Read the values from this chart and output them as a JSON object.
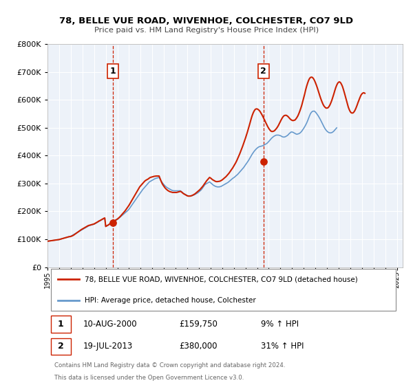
{
  "title": "78, BELLE VUE ROAD, WIVENHOE, COLCHESTER, CO7 9LD",
  "subtitle": "Price paid vs. HM Land Registry's House Price Index (HPI)",
  "legend_line1": "78, BELLE VUE ROAD, WIVENHOE, COLCHESTER, CO7 9LD (detached house)",
  "legend_line2": "HPI: Average price, detached house, Colchester",
  "annotation1_date": "10-AUG-2000",
  "annotation1_price": "£159,750",
  "annotation1_hpi": "9% ↑ HPI",
  "annotation2_date": "19-JUL-2013",
  "annotation2_price": "£380,000",
  "annotation2_hpi": "31% ↑ HPI",
  "footer1": "Contains HM Land Registry data © Crown copyright and database right 2024.",
  "footer2": "This data is licensed under the Open Government Licence v3.0.",
  "hpi_color": "#6699cc",
  "price_color": "#cc2200",
  "vline_color": "#cc2200",
  "plot_bg_color": "#edf2f9",
  "ylim": [
    0,
    800000
  ],
  "yticks": [
    0,
    100000,
    200000,
    300000,
    400000,
    500000,
    600000,
    700000,
    800000
  ],
  "xlim_start": 1995.0,
  "xlim_end": 2025.5,
  "xticks": [
    1995,
    1996,
    1997,
    1998,
    1999,
    2000,
    2001,
    2002,
    2003,
    2004,
    2005,
    2006,
    2007,
    2008,
    2009,
    2010,
    2011,
    2012,
    2013,
    2014,
    2015,
    2016,
    2017,
    2018,
    2019,
    2020,
    2021,
    2022,
    2023,
    2024,
    2025
  ],
  "sale1_x": 2000.61,
  "sale1_y": 159750,
  "sale2_x": 2013.54,
  "sale2_y": 380000,
  "vline1_x": 2000.61,
  "vline2_x": 2013.54,
  "hpi_y": [
    93000,
    93500,
    94000,
    94500,
    95000,
    95500,
    96000,
    96500,
    97000,
    97500,
    98000,
    98500,
    99000,
    100000,
    101000,
    102000,
    103000,
    104000,
    105000,
    106000,
    107000,
    108000,
    109000,
    110000,
    111000,
    113000,
    115000,
    117000,
    119000,
    121000,
    123000,
    125000,
    127000,
    129000,
    131000,
    133000,
    135000,
    137000,
    139000,
    141000,
    143000,
    145000,
    147000,
    149000,
    150000,
    151000,
    152000,
    153000,
    154000,
    156000,
    158000,
    160000,
    162000,
    164000,
    166000,
    168000,
    170000,
    172000,
    174000,
    176000,
    146000,
    148000,
    150000,
    152000,
    154000,
    157000,
    159000,
    161000,
    163000,
    165000,
    167000,
    169000,
    171000,
    174000,
    177000,
    180000,
    183000,
    186000,
    189000,
    192000,
    195000,
    198000,
    201000,
    204000,
    208000,
    213000,
    218000,
    223000,
    228000,
    233000,
    238000,
    243000,
    248000,
    253000,
    258000,
    263000,
    268000,
    273000,
    278000,
    282000,
    286000,
    290000,
    294000,
    298000,
    302000,
    306000,
    308000,
    310000,
    312000,
    314000,
    316000,
    318000,
    319000,
    320000,
    321000,
    322000,
    316000,
    310000,
    305000,
    300000,
    296000,
    292000,
    289000,
    286000,
    284000,
    282000,
    280000,
    278000,
    276000,
    275000,
    274000,
    274000,
    274000,
    274000,
    274000,
    274000,
    274000,
    274000,
    271000,
    268000,
    265000,
    263000,
    261000,
    259000,
    257000,
    256000,
    255000,
    255000,
    256000,
    257000,
    258000,
    259000,
    261000,
    263000,
    265000,
    267000,
    270000,
    273000,
    276000,
    280000,
    285000,
    290000,
    295000,
    298000,
    300000,
    302000,
    304000,
    306000,
    303000,
    300000,
    297000,
    294000,
    292000,
    290000,
    289000,
    288000,
    288000,
    288000,
    289000,
    290000,
    292000,
    294000,
    296000,
    298000,
    300000,
    302000,
    304000,
    307000,
    310000,
    313000,
    316000,
    319000,
    321000,
    324000,
    327000,
    330000,
    333000,
    337000,
    341000,
    345000,
    349000,
    353000,
    357000,
    362000,
    367000,
    372000,
    377000,
    382000,
    388000,
    394000,
    400000,
    406000,
    411000,
    416000,
    420000,
    424000,
    427000,
    430000,
    432000,
    433000,
    434000,
    435000,
    436000,
    438000,
    440000,
    442000,
    444000,
    447000,
    451000,
    455000,
    459000,
    463000,
    466000,
    469000,
    471000,
    473000,
    474000,
    474000,
    474000,
    473000,
    472000,
    470000,
    468000,
    467000,
    467000,
    468000,
    470000,
    472000,
    475000,
    479000,
    482000,
    485000,
    485000,
    484000,
    482000,
    480000,
    478000,
    477000,
    478000,
    479000,
    481000,
    484000,
    488000,
    493000,
    498000,
    504000,
    510000,
    517000,
    525000,
    534000,
    543000,
    551000,
    556000,
    559000,
    560000,
    560000,
    557000,
    553000,
    548000,
    543000,
    537000,
    531000,
    524000,
    517000,
    510000,
    503000,
    497000,
    492000,
    488000,
    485000,
    483000,
    482000,
    482000,
    483000,
    485000,
    488000,
    492000,
    496000,
    500000
  ],
  "price_y": [
    93000,
    93500,
    94000,
    94500,
    95000,
    95500,
    96000,
    96500,
    97000,
    97500,
    98000,
    98500,
    99000,
    100000,
    101000,
    102000,
    103000,
    104000,
    105000,
    106000,
    107000,
    108000,
    109000,
    109500,
    110000,
    111500,
    113000,
    115000,
    117500,
    120000,
    122500,
    125000,
    127500,
    130000,
    132500,
    135000,
    137000,
    139000,
    141000,
    143000,
    145000,
    147000,
    149000,
    150000,
    151000,
    152000,
    153000,
    154000,
    155000,
    157000,
    159000,
    161000,
    163000,
    165500,
    167000,
    169000,
    171000,
    173000,
    175000,
    176500,
    146000,
    148000,
    150000,
    152000,
    155000,
    157500,
    159750,
    162000,
    164000,
    166500,
    168500,
    170500,
    172500,
    175500,
    178500,
    182000,
    186000,
    190000,
    194000,
    198000,
    202000,
    207000,
    212000,
    217000,
    222000,
    228000,
    234000,
    240000,
    246000,
    252000,
    258000,
    264000,
    270000,
    276000,
    282000,
    288000,
    292000,
    296000,
    300000,
    304000,
    308000,
    311000,
    313000,
    315000,
    317000,
    320000,
    322000,
    323000,
    324000,
    325000,
    326000,
    326500,
    327000,
    327000,
    327000,
    327000,
    318000,
    309000,
    301000,
    295000,
    290000,
    285000,
    281000,
    278000,
    275000,
    273000,
    271000,
    270000,
    269000,
    268000,
    268000,
    268000,
    268000,
    268000,
    269000,
    270000,
    271000,
    272000,
    270000,
    267000,
    264000,
    262000,
    260000,
    258000,
    256000,
    255000,
    255000,
    255000,
    256000,
    257000,
    259000,
    261000,
    263000,
    266000,
    269000,
    272000,
    275000,
    278000,
    282000,
    286000,
    290000,
    295000,
    300000,
    305000,
    310000,
    314000,
    318000,
    322000,
    320000,
    317000,
    314000,
    312000,
    310000,
    308000,
    307000,
    307000,
    307500,
    308000,
    309000,
    311000,
    313000,
    316000,
    319000,
    322000,
    325000,
    329000,
    333000,
    337000,
    342000,
    347000,
    352000,
    357000,
    363000,
    369000,
    375000,
    382000,
    390000,
    398000,
    406000,
    415000,
    424000,
    433000,
    443000,
    453000,
    463000,
    474000,
    485000,
    497000,
    509000,
    522000,
    534000,
    545000,
    554000,
    561000,
    566000,
    568000,
    568000,
    566000,
    563000,
    559000,
    553000,
    547000,
    540000,
    533000,
    526000,
    518000,
    511000,
    504000,
    498000,
    493000,
    489000,
    487000,
    487000,
    488000,
    490000,
    494000,
    498000,
    503000,
    509000,
    516000,
    523000,
    530000,
    536000,
    541000,
    544000,
    545000,
    545000,
    543000,
    540000,
    536000,
    532000,
    529000,
    527000,
    526000,
    527000,
    528000,
    532000,
    537000,
    543000,
    551000,
    560000,
    570000,
    581000,
    594000,
    607000,
    621000,
    636000,
    649000,
    660000,
    670000,
    677000,
    681000,
    682000,
    681000,
    677000,
    671000,
    663000,
    654000,
    644000,
    633000,
    622000,
    611000,
    601000,
    592000,
    584000,
    578000,
    574000,
    571000,
    571000,
    572000,
    576000,
    582000,
    590000,
    599000,
    610000,
    621000,
    633000,
    644000,
    653000,
    660000,
    664000,
    665000,
    662000,
    656000,
    648000,
    637000,
    625000,
    612000,
    598000,
    585000,
    574000,
    565000,
    558000,
    554000,
    553000,
    554000,
    558000,
    564000,
    572000,
    581000,
    591000,
    600000,
    609000,
    617000,
    622000,
    625000,
    626000,
    624000
  ]
}
